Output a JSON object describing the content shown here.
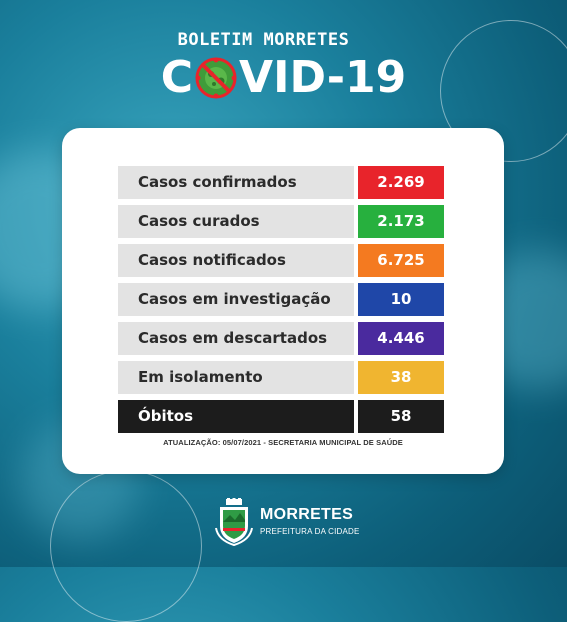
{
  "header": {
    "subtitle": "BOLETIM MORRETES",
    "title_left": "C",
    "title_right": "VID-19"
  },
  "colors": {
    "confirmed": "#e8242b",
    "cured": "#27b03e",
    "notified": "#f47a20",
    "investigation": "#1f47a8",
    "discarded": "#4a2a9e",
    "isolation": "#f0b530",
    "deaths": "#1c1c1c"
  },
  "bulletin": {
    "rows": [
      {
        "label": "Casos confirmados",
        "value": "2.269"
      },
      {
        "label": "Casos curados",
        "value": "2.173"
      },
      {
        "label": "Casos notificados",
        "value": "6.725"
      },
      {
        "label": "Casos em investigação",
        "value": "10"
      },
      {
        "label": "Casos em descartados",
        "value": "4.446"
      },
      {
        "label": "Em isolamento",
        "value": "38"
      },
      {
        "label": "Óbitos",
        "value": "58"
      }
    ],
    "footnote": "ATUALIZAÇÃO: 05/07/2021 - SECRETARIA MUNICIPAL DE SAÚDE"
  },
  "brand": {
    "name": "MORRETES",
    "tagline": "PREFEITURA DA CIDADE"
  }
}
